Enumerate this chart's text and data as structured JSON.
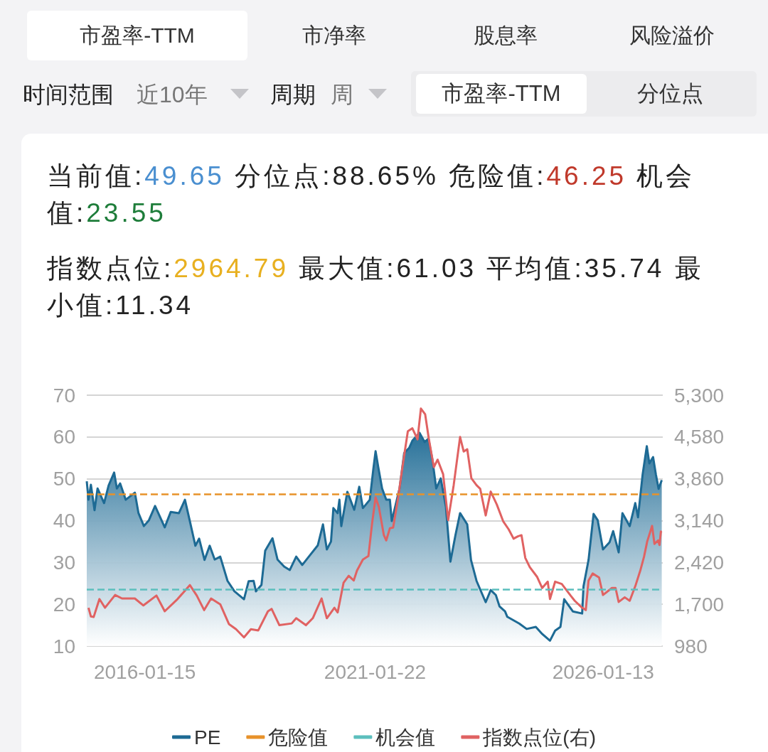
{
  "chart_data": {
    "type": "area",
    "annotations": [
      "市盈率-TTM",
      "市净率",
      "股息率",
      "风险溢价",
      "时间范围",
      "近10年",
      "周期",
      "周",
      "市盈率-TTM",
      "分位点",
      "当前值:49.65",
      "分位点:88.65%",
      "危险值:46.25",
      "机会值:23.55",
      "指数点位:2964.79",
      "最大值:61.03",
      "平均值:35.74",
      "最小值:11.34"
    ],
    "xlim": [
      "2014-10-10",
      "2027-05-02"
    ],
    "xticks": [
      {
        "value": "2016-01-15",
        "label": "2016-01-15"
      },
      {
        "value": "2021-01-22",
        "label": "2021-01-22"
      },
      {
        "value": "2026-01-13",
        "label": "2026-01-13"
      }
    ],
    "ylim": [
      10,
      70
    ],
    "yticks": [
      10,
      20,
      30,
      40,
      50,
      60,
      70
    ],
    "y2lim": [
      980,
      5300
    ],
    "y2ticks": [
      {
        "value": 980,
        "label": "980"
      },
      {
        "value": 1700,
        "label": "1,700"
      },
      {
        "value": 2420,
        "label": "2,420"
      },
      {
        "value": 3140,
        "label": "3,140"
      },
      {
        "value": 3860,
        "label": "3,860"
      },
      {
        "value": 4580,
        "label": "4,580"
      },
      {
        "value": 5300,
        "label": "5,300"
      }
    ],
    "grid": "y",
    "legend": "bottom",
    "series": [
      {
        "name": "PE",
        "color": "#1d6a94",
        "x": [
          "2014-10-10",
          "2014-10-24",
          "2014-11-12",
          "2014-12-11",
          "2015-01-04",
          "2015-02-25",
          "2015-04-02",
          "2015-05-16",
          "2015-06-07",
          "2015-07-03",
          "2015-08-16",
          "2015-10-28",
          "2015-11-26",
          "2016-01-08",
          "2016-02-17",
          "2016-04-06",
          "2016-06-22",
          "2016-08-09",
          "2016-10-13",
          "2016-11-30",
          "2017-01-08",
          "2017-02-21",
          "2017-03-23",
          "2017-05-05",
          "2017-06-15",
          "2017-07-25",
          "2017-09-07",
          "2017-11-04",
          "2017-12-29",
          "2018-03-15",
          "2018-04-21",
          "2018-05-31",
          "2018-06-18",
          "2018-08-01",
          "2018-08-31",
          "2018-10-28",
          "2018-12-07",
          "2019-01-30",
          "2019-03-15",
          "2019-05-05",
          "2019-06-22",
          "2019-08-27",
          "2019-10-24",
          "2019-12-04",
          "2020-01-04",
          "2020-02-06",
          "2020-02-25",
          "2020-03-30",
          "2020-04-13",
          "2020-04-28",
          "2020-06-15",
          "2020-08-09",
          "2020-09-18",
          "2020-10-17",
          "2020-12-11",
          "2021-01-08",
          "2021-01-26",
          "2021-02-17",
          "2021-03-19",
          "2021-04-21",
          "2021-05-20",
          "2021-06-04",
          "2021-08-05",
          "2021-09-11",
          "2021-10-21",
          "2021-11-15",
          "2022-01-11",
          "2022-02-21",
          "2022-03-23",
          "2022-04-24",
          "2022-05-24",
          "2022-06-29",
          "2022-08-09",
          "2022-09-14",
          "2022-10-24",
          "2022-11-30",
          "2023-01-26",
          "2023-02-25",
          "2023-04-10",
          "2023-06-22",
          "2023-08-01",
          "2023-09-11",
          "2023-10-10",
          "2023-11-23",
          "2023-12-11",
          "2024-03-15",
          "2024-05-13",
          "2024-07-25",
          "2024-09-14",
          "2024-11-15",
          "2024-12-26",
          "2025-02-06",
          "2025-03-08",
          "2025-05-16",
          "2025-07-29",
          "2025-08-09",
          "2025-09-18",
          "2025-10-28",
          "2025-11-30",
          "2026-01-11",
          "2026-03-04",
          "2026-04-02",
          "2026-05-16",
          "2026-06-15",
          "2026-08-12",
          "2026-09-25",
          "2026-10-17",
          "2026-11-23",
          "2026-12-26",
          "2027-01-15",
          "2027-02-14",
          "2027-03-08",
          "2027-03-30",
          "2027-04-24"
        ],
        "values": [
          49.4,
          45.0,
          48.6,
          42.5,
          47.7,
          44.2,
          48.4,
          51.5,
          47.7,
          48.9,
          45.0,
          46.7,
          41.8,
          38.7,
          40.1,
          43.5,
          38.4,
          42.1,
          41.8,
          45.0,
          39.9,
          34.0,
          35.7,
          30.6,
          34.0,
          30.7,
          31.4,
          25.6,
          23.1,
          21.2,
          25.5,
          25.6,
          23.1,
          24.6,
          32.8,
          35.8,
          30.7,
          29.0,
          28.2,
          31.4,
          29.4,
          31.9,
          34.1,
          39.1,
          33.1,
          35.0,
          43.0,
          41.8,
          45.0,
          38.7,
          46.9,
          42.6,
          48.1,
          43.0,
          45.0,
          52.3,
          56.6,
          52.7,
          47.7,
          45.0,
          45.0,
          39.9,
          47.7,
          56.2,
          57.4,
          59.1,
          61.0,
          58.8,
          59.6,
          54.5,
          47.7,
          50.1,
          43.3,
          30.2,
          36.5,
          41.8,
          39.1,
          30.6,
          25.6,
          20.5,
          23.4,
          22.2,
          19.5,
          18.3,
          17.0,
          15.4,
          14.1,
          14.6,
          12.9,
          11.3,
          13.7,
          14.6,
          21.2,
          18.3,
          17.8,
          24.3,
          30.6,
          41.6,
          40.1,
          33.1,
          34.8,
          37.5,
          32.4,
          41.8,
          38.7,
          44.2,
          40.8,
          51.1,
          57.8,
          53.7,
          55.2,
          51.1,
          47.6,
          49.7
        ]
      },
      {
        "name": "指数点位(右)",
        "type": "line",
        "axis": "y2",
        "color": "#e06262",
        "x": [
          "2014-10-24",
          "2014-11-12",
          "2014-12-04",
          "2015-01-19",
          "2015-03-04",
          "2015-05-24",
          "2015-07-18",
          "2015-10-28",
          "2016-01-04",
          "2016-04-17",
          "2016-06-22",
          "2016-10-02",
          "2017-01-08",
          "2017-03-04",
          "2017-05-02",
          "2017-06-26",
          "2017-09-07",
          "2017-11-15",
          "2018-01-11",
          "2018-03-15",
          "2018-05-09",
          "2018-07-07",
          "2018-09-22",
          "2018-10-21",
          "2018-12-22",
          "2019-03-30",
          "2019-05-05",
          "2019-07-21",
          "2019-09-14",
          "2019-11-23",
          "2020-01-04",
          "2020-03-04",
          "2020-03-30",
          "2020-05-16",
          "2020-06-26",
          "2020-08-05",
          "2020-08-31",
          "2020-10-17",
          "2020-11-30",
          "2020-12-29",
          "2021-01-26",
          "2021-02-21",
          "2021-04-02",
          "2021-04-21",
          "2021-05-20",
          "2021-06-15",
          "2021-07-25",
          "2021-09-03",
          "2021-10-10",
          "2021-11-15",
          "2021-12-26",
          "2022-01-22",
          "2022-02-25",
          "2022-03-26",
          "2022-05-05",
          "2022-06-04",
          "2022-07-18",
          "2022-08-27",
          "2022-10-10",
          "2022-11-30",
          "2022-12-29",
          "2023-01-26",
          "2023-02-28",
          "2023-04-10",
          "2023-05-09",
          "2023-06-22",
          "2023-08-01",
          "2023-09-18",
          "2023-11-08",
          "2023-12-22",
          "2024-01-30",
          "2024-03-04",
          "2024-04-02",
          "2024-05-02",
          "2024-06-07",
          "2024-08-05",
          "2024-09-14",
          "2024-10-28",
          "2024-11-15",
          "2024-12-26",
          "2025-02-17",
          "2025-04-28",
          "2025-05-31",
          "2025-07-29",
          "2025-08-27",
          "2025-09-18",
          "2025-10-21",
          "2025-12-11",
          "2026-01-11",
          "2026-03-23",
          "2026-04-21",
          "2026-05-16",
          "2026-07-03",
          "2026-08-12",
          "2026-09-25",
          "2026-11-04",
          "2026-12-04",
          "2026-12-29",
          "2027-02-06",
          "2027-02-25",
          "2027-03-26",
          "2027-04-06",
          "2027-04-17",
          "2027-04-24"
        ],
        "values": [
          1640,
          1490,
          1480,
          1790,
          1640,
          1860,
          1800,
          1800,
          1680,
          1850,
          1580,
          1790,
          2030,
          1850,
          1600,
          1800,
          1700,
          1360,
          1270,
          1130,
          1270,
          1250,
          1580,
          1620,
          1340,
          1370,
          1460,
          1340,
          1460,
          1800,
          1460,
          1640,
          1560,
          2070,
          2190,
          2110,
          2280,
          2470,
          2530,
          3090,
          3540,
          3380,
          2890,
          2800,
          3010,
          3020,
          3540,
          4150,
          4680,
          4730,
          4540,
          5070,
          4970,
          4550,
          4060,
          4190,
          3940,
          3150,
          3750,
          4580,
          4330,
          4370,
          3870,
          3750,
          3690,
          3230,
          3640,
          3420,
          3130,
          2990,
          2830,
          2870,
          2890,
          2500,
          2340,
          2170,
          1980,
          2090,
          1790,
          2090,
          2050,
          1850,
          1760,
          1640,
          1600,
          2110,
          2230,
          2160,
          1860,
          1980,
          1980,
          1740,
          1820,
          1760,
          2010,
          2280,
          2520,
          2780,
          3050,
          2740,
          2800,
          2720,
          2950,
          2960
        ]
      }
    ],
    "ref_lines": [
      {
        "axis": "y",
        "value": 46.25,
        "label": "危险值",
        "color": "#e8922a",
        "line_style": "dashed"
      },
      {
        "axis": "y",
        "value": 23.55,
        "label": "机会值",
        "color": "#5cbfbd",
        "line_style": "dashed"
      }
    ]
  }
}
